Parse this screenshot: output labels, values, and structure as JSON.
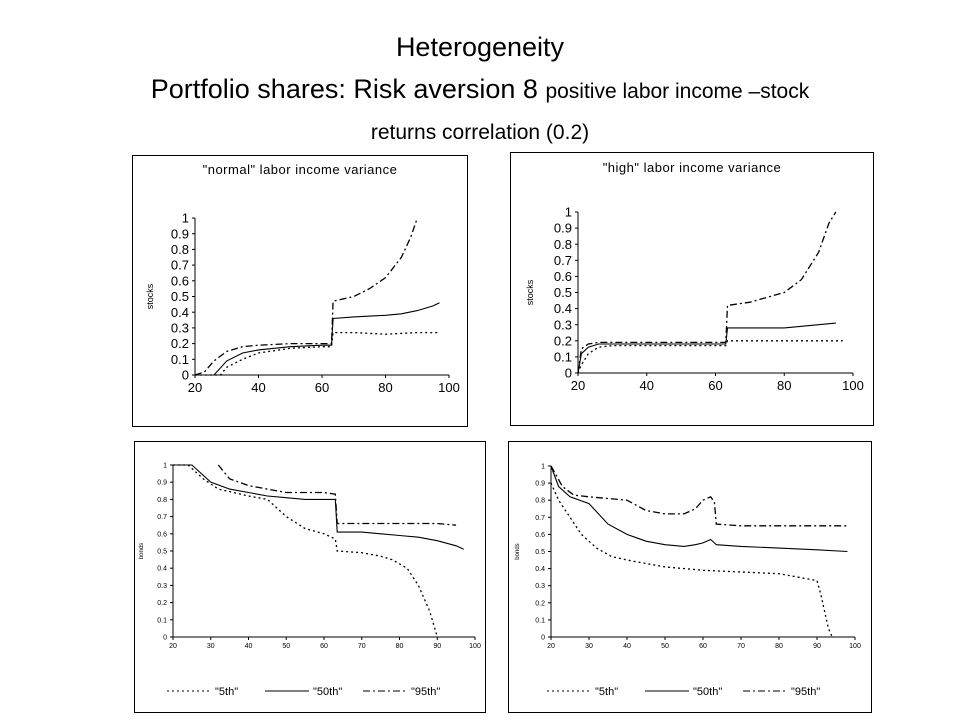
{
  "slide": {
    "title_line1": "Heterogeneity",
    "title_line2_large": "Portfolio shares: Risk aversion 8",
    "title_line2_small": "positive labor income –stock",
    "title_line3": "returns correlation (0.2)"
  },
  "chart_data": [
    {
      "type": "line",
      "title": "\"normal\" labor income variance",
      "xlabel": "",
      "ylabel": "stocks",
      "xlim": [
        20,
        100
      ],
      "ylim": [
        0,
        1
      ],
      "xticks": [
        20,
        40,
        60,
        80,
        100
      ],
      "yticks": [
        0,
        0.1,
        0.2,
        0.3,
        0.4,
        0.5,
        0.6,
        0.7,
        0.8,
        0.9,
        1
      ],
      "ytick_labels": [
        "0",
        "0.1",
        "0.2",
        "0.3",
        "0.4",
        "0.5",
        "0.6",
        "0.7",
        "0.8",
        "0.9",
        "1"
      ],
      "legend": false,
      "grid": false,
      "series": [
        {
          "name": "\"5th\"",
          "style": "dotted",
          "x": [
            20,
            28,
            30,
            35,
            40,
            50,
            60,
            63,
            63.5,
            70,
            80,
            90,
            97
          ],
          "y": [
            0,
            0,
            0.05,
            0.1,
            0.14,
            0.17,
            0.18,
            0.18,
            0.27,
            0.27,
            0.26,
            0.27,
            0.27
          ]
        },
        {
          "name": "\"50th\"",
          "style": "solid",
          "x": [
            20,
            26,
            30,
            35,
            40,
            50,
            60,
            63,
            63.5,
            70,
            80,
            85,
            90,
            95,
            97
          ],
          "y": [
            0,
            0,
            0.09,
            0.14,
            0.16,
            0.18,
            0.19,
            0.19,
            0.36,
            0.37,
            0.38,
            0.39,
            0.41,
            0.44,
            0.46
          ]
        },
        {
          "name": "\"95th\"",
          "style": "dashdot",
          "x": [
            20,
            23,
            26,
            30,
            35,
            40,
            50,
            60,
            63,
            63.5,
            70,
            75,
            80,
            85,
            88,
            90
          ],
          "y": [
            0,
            0.02,
            0.09,
            0.15,
            0.18,
            0.19,
            0.2,
            0.2,
            0.2,
            0.47,
            0.5,
            0.55,
            0.62,
            0.75,
            0.88,
            1
          ]
        }
      ]
    },
    {
      "type": "line",
      "title": "\"high\" labor income variance",
      "xlabel": "",
      "ylabel": "stocks",
      "xlim": [
        20,
        100
      ],
      "ylim": [
        0,
        1
      ],
      "xticks": [
        20,
        40,
        60,
        80,
        100
      ],
      "yticks": [
        0,
        0.1,
        0.2,
        0.3,
        0.4,
        0.5,
        0.6,
        0.7,
        0.8,
        0.9,
        1
      ],
      "ytick_labels": [
        "0",
        "0.1",
        "0.2",
        "0.3",
        "0.4",
        "0.5",
        "0.6",
        "0.7",
        "0.8",
        "0.9",
        "1"
      ],
      "legend": false,
      "grid": false,
      "series": [
        {
          "name": "\"5th\"",
          "style": "dotted",
          "x": [
            20,
            21,
            23,
            26,
            30,
            40,
            50,
            60,
            63,
            63.5,
            70,
            80,
            90,
            97
          ],
          "y": [
            0,
            0.05,
            0.12,
            0.16,
            0.17,
            0.17,
            0.17,
            0.17,
            0.17,
            0.2,
            0.2,
            0.2,
            0.2,
            0.2
          ]
        },
        {
          "name": "\"50th\"",
          "style": "solid",
          "x": [
            20,
            21,
            23,
            26,
            30,
            40,
            50,
            60,
            63,
            63.5,
            70,
            80,
            90,
            95
          ],
          "y": [
            0,
            0.12,
            0.16,
            0.18,
            0.18,
            0.18,
            0.18,
            0.18,
            0.18,
            0.28,
            0.28,
            0.28,
            0.3,
            0.31
          ]
        },
        {
          "name": "\"95th\"",
          "style": "dashdot",
          "x": [
            20,
            21,
            23,
            26,
            30,
            40,
            50,
            60,
            63,
            63.5,
            70,
            75,
            80,
            85,
            90,
            93,
            95
          ],
          "y": [
            0,
            0.15,
            0.18,
            0.19,
            0.19,
            0.19,
            0.19,
            0.19,
            0.19,
            0.42,
            0.44,
            0.47,
            0.5,
            0.58,
            0.75,
            0.93,
            1
          ]
        }
      ]
    },
    {
      "type": "line",
      "title": "",
      "xlabel": "",
      "ylabel": "bonds",
      "xlim": [
        20,
        100
      ],
      "ylim": [
        0,
        1
      ],
      "xticks": [
        20,
        30,
        40,
        50,
        60,
        70,
        80,
        90,
        100
      ],
      "yticks": [
        0,
        0.1,
        0.2,
        0.3,
        0.4,
        0.5,
        0.6,
        0.7,
        0.8,
        0.9,
        1
      ],
      "ytick_labels": [
        "0",
        "0.1",
        "0.2",
        "0.3",
        "0.4",
        "0.5",
        "0.6",
        "0.7",
        "0.8",
        "0.9",
        "1"
      ],
      "legend": "bottom",
      "grid": false,
      "series": [
        {
          "name": "\"5th\"",
          "style": "dotted",
          "x": [
            20,
            24,
            28,
            32,
            36,
            40,
            45,
            50,
            55,
            60,
            63,
            63.5,
            70,
            75,
            78,
            82,
            85,
            88,
            90
          ],
          "y": [
            1,
            1,
            0.92,
            0.86,
            0.84,
            0.82,
            0.8,
            0.7,
            0.63,
            0.6,
            0.57,
            0.5,
            0.49,
            0.47,
            0.45,
            0.4,
            0.3,
            0.15,
            0
          ]
        },
        {
          "name": "\"50th\"",
          "style": "solid",
          "x": [
            20,
            25,
            30,
            35,
            40,
            45,
            50,
            55,
            60,
            63,
            63.5,
            70,
            75,
            80,
            85,
            90,
            95,
            97
          ],
          "y": [
            1,
            1,
            0.9,
            0.86,
            0.84,
            0.82,
            0.81,
            0.8,
            0.8,
            0.8,
            0.61,
            0.61,
            0.6,
            0.59,
            0.58,
            0.56,
            0.53,
            0.51
          ]
        },
        {
          "name": "\"95th\"",
          "style": "dashdot",
          "x": [
            32,
            35,
            40,
            45,
            50,
            55,
            60,
            63,
            63.5,
            70,
            80,
            90,
            95
          ],
          "y": [
            1,
            0.92,
            0.88,
            0.86,
            0.84,
            0.84,
            0.84,
            0.83,
            0.66,
            0.66,
            0.66,
            0.66,
            0.65
          ]
        }
      ]
    },
    {
      "type": "line",
      "title": "",
      "xlabel": "",
      "ylabel": "bonds",
      "xlim": [
        20,
        100
      ],
      "ylim": [
        0,
        1
      ],
      "xticks": [
        20,
        30,
        40,
        50,
        60,
        70,
        80,
        90,
        100
      ],
      "yticks": [
        0,
        0.1,
        0.2,
        0.3,
        0.4,
        0.5,
        0.6,
        0.7,
        0.8,
        0.9,
        1
      ],
      "ytick_labels": [
        "0",
        "0.1",
        "0.2",
        "0.3",
        "0.4",
        "0.5",
        "0.6",
        "0.7",
        "0.8",
        "0.9",
        "1"
      ],
      "legend": "bottom",
      "grid": false,
      "series": [
        {
          "name": "\"5th\"",
          "style": "dotted",
          "x": [
            20,
            22,
            25,
            28,
            32,
            36,
            40,
            45,
            50,
            60,
            70,
            80,
            90,
            91,
            92,
            93,
            94
          ],
          "y": [
            0.9,
            0.8,
            0.7,
            0.6,
            0.52,
            0.47,
            0.45,
            0.43,
            0.41,
            0.39,
            0.38,
            0.37,
            0.33,
            0.25,
            0.15,
            0.05,
            0
          ]
        },
        {
          "name": "\"50th\"",
          "style": "solid",
          "x": [
            20,
            22,
            25,
            30,
            35,
            40,
            45,
            50,
            55,
            58,
            60,
            62,
            63,
            63.5,
            70,
            80,
            90,
            98
          ],
          "y": [
            1,
            0.88,
            0.82,
            0.78,
            0.66,
            0.6,
            0.56,
            0.54,
            0.53,
            0.54,
            0.55,
            0.57,
            0.55,
            0.54,
            0.53,
            0.52,
            0.51,
            0.5
          ]
        },
        {
          "name": "\"95th\"",
          "style": "dashdot",
          "x": [
            20,
            23,
            26,
            30,
            35,
            40,
            45,
            50,
            55,
            58,
            60,
            62,
            63,
            63.5,
            70,
            80,
            90,
            98
          ],
          "y": [
            1,
            0.88,
            0.83,
            0.82,
            0.81,
            0.8,
            0.74,
            0.72,
            0.72,
            0.75,
            0.8,
            0.82,
            0.79,
            0.66,
            0.65,
            0.65,
            0.65,
            0.65
          ]
        }
      ]
    }
  ]
}
